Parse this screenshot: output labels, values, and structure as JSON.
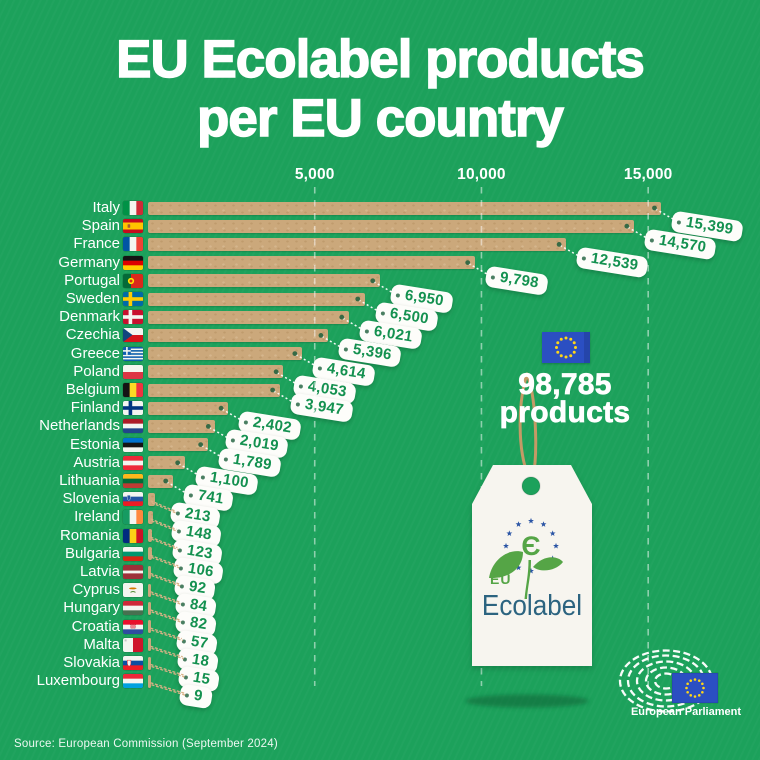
{
  "title": {
    "line1": "EU Ecolabel products",
    "line2": "per EU country"
  },
  "chart_data": {
    "type": "bar",
    "orientation": "horizontal",
    "title": "EU Ecolabel products per EU country",
    "xlabel": "",
    "ylabel": "",
    "xlim": [
      0,
      18000
    ],
    "grid": "dashed vertical gridlines at ticks",
    "legend": "none",
    "x_ticks": [
      {
        "label": "5,000",
        "value": 5000
      },
      {
        "label": "10,000",
        "value": 10000
      },
      {
        "label": "15,000",
        "value": 15000
      }
    ],
    "categories": [
      "Italy",
      "Spain",
      "France",
      "Germany",
      "Portugal",
      "Sweden",
      "Denmark",
      "Czechia",
      "Greece",
      "Poland",
      "Belgium",
      "Finland",
      "Netherlands",
      "Estonia",
      "Austria",
      "Lithuania",
      "Slovenia",
      "Ireland",
      "Romania",
      "Bulgaria",
      "Latvia",
      "Cyprus",
      "Hungary",
      "Croatia",
      "Malta",
      "Slovakia",
      "Luxembourg"
    ],
    "values": [
      15399,
      14570,
      12539,
      9798,
      6950,
      6500,
      6021,
      5396,
      4614,
      4053,
      3947,
      2402,
      2019,
      1789,
      1100,
      741,
      213,
      148,
      123,
      106,
      92,
      84,
      82,
      57,
      18,
      15,
      9
    ],
    "value_labels": [
      "15,399",
      "14,570",
      "12,539",
      "9,798",
      "6,950",
      "6,500",
      "6,021",
      "5,396",
      "4,614",
      "4,053",
      "3,947",
      "2,402",
      "2,019",
      "1,789",
      "1,100",
      "741",
      "213",
      "148",
      "123",
      "106",
      "92",
      "84",
      "82",
      "57",
      "18",
      "15",
      "9"
    ],
    "total": {
      "value": 98785,
      "label": "98,785 products"
    }
  },
  "flags": [
    {
      "t": "v",
      "c": [
        "#009246",
        "#f4f5f0",
        "#ce2b37"
      ]
    },
    {
      "t": "h",
      "c": [
        "#c60b1e",
        "#ffc400",
        "#c60b1e"
      ],
      "w": [
        0.25,
        0.5,
        0.25
      ],
      "e": "spain"
    },
    {
      "t": "v",
      "c": [
        "#0055a4",
        "#f4f5f0",
        "#ef4135"
      ]
    },
    {
      "t": "h",
      "c": [
        "#141414",
        "#dd0000",
        "#ffce00"
      ]
    },
    {
      "t": "v",
      "c": [
        "#046a38",
        "#da291c"
      ],
      "w": [
        0.4,
        0.6
      ],
      "e": "portugal"
    },
    {
      "t": "cross",
      "c": [
        "#006aa7",
        "#fecc02"
      ]
    },
    {
      "t": "cross",
      "c": [
        "#c8102e",
        "#f4f5f0"
      ]
    },
    {
      "t": "h",
      "c": [
        "#f4f5f0",
        "#d7141a"
      ],
      "e": "czechia"
    },
    {
      "t": "greece",
      "c": [
        "#0d5eaf",
        "#f4f5f0"
      ]
    },
    {
      "t": "h",
      "c": [
        "#f4f5f0",
        "#dc3545"
      ]
    },
    {
      "t": "v",
      "c": [
        "#141414",
        "#fdda24",
        "#ef3340"
      ]
    },
    {
      "t": "cross",
      "c": [
        "#f4f5f0",
        "#003580"
      ]
    },
    {
      "t": "h",
      "c": [
        "#ae1c28",
        "#f4f5f0",
        "#21468b"
      ]
    },
    {
      "t": "h",
      "c": [
        "#0072ce",
        "#141414",
        "#f4f5f0"
      ]
    },
    {
      "t": "h",
      "c": [
        "#ed2939",
        "#f4f5f0",
        "#ed2939"
      ]
    },
    {
      "t": "h",
      "c": [
        "#ffb81c",
        "#046a38",
        "#be3a34"
      ]
    },
    {
      "t": "h",
      "c": [
        "#f4f5f0",
        "#2455a4",
        "#ed1c24"
      ],
      "e": "slovenia"
    },
    {
      "t": "v",
      "c": [
        "#169b62",
        "#f4f5f0",
        "#ff883e"
      ]
    },
    {
      "t": "v",
      "c": [
        "#002b7f",
        "#fcd116",
        "#ce1126"
      ]
    },
    {
      "t": "h",
      "c": [
        "#f4f5f0",
        "#00966e",
        "#d62612"
      ]
    },
    {
      "t": "h",
      "c": [
        "#9e3039",
        "#f4f5f0",
        "#9e3039"
      ],
      "w": [
        0.4,
        0.2,
        0.4
      ]
    },
    {
      "t": "plain",
      "c": [
        "#f4f5f0"
      ],
      "e": "cyprus"
    },
    {
      "t": "h",
      "c": [
        "#ce2939",
        "#f4f5f0",
        "#477050"
      ]
    },
    {
      "t": "h",
      "c": [
        "#e8112d",
        "#f4f5f0",
        "#2e4ca0"
      ],
      "e": "croatia"
    },
    {
      "t": "v",
      "c": [
        "#f4f5f0",
        "#cf142b"
      ],
      "e": "malta"
    },
    {
      "t": "h",
      "c": [
        "#f4f5f0",
        "#0b4ea2",
        "#ee1c25"
      ],
      "e": "slovakia"
    },
    {
      "t": "h",
      "c": [
        "#ed2939",
        "#f4f5f0",
        "#00a1de"
      ]
    }
  ],
  "callout": {
    "flag_icon": "eu-flag-icon",
    "total_value": "98,785",
    "total_label": "products"
  },
  "ecolabel_tag": {
    "eu": "EU",
    "wordmark": "Ecolabel",
    "flower_icon": "eu-ecolabel-flower-icon",
    "epsilon_glyph": "Є"
  },
  "ep_logo": {
    "label": "European Parliament",
    "icon": "european-parliament-hemicycle-icon"
  },
  "footer": {
    "source": "Source: European Commission (September 2024)"
  },
  "colors": {
    "background": "#1CA15B",
    "bar_tan": "#CBA87B",
    "value_green": "#149150",
    "dot_dark_green": "#1d5f3c",
    "twine_tan": "#d9b286",
    "rope_tan": "#c49a66",
    "eu_blue": "#2b4fc2",
    "star_yellow": "#ffd617",
    "ecolabel_star_blue": "#2b55a5",
    "ecolabel_text_blue": "#2c6480",
    "leaf_green": "#55a546",
    "tag_white": "#FDFDFA",
    "text_white": "#ffffff"
  }
}
